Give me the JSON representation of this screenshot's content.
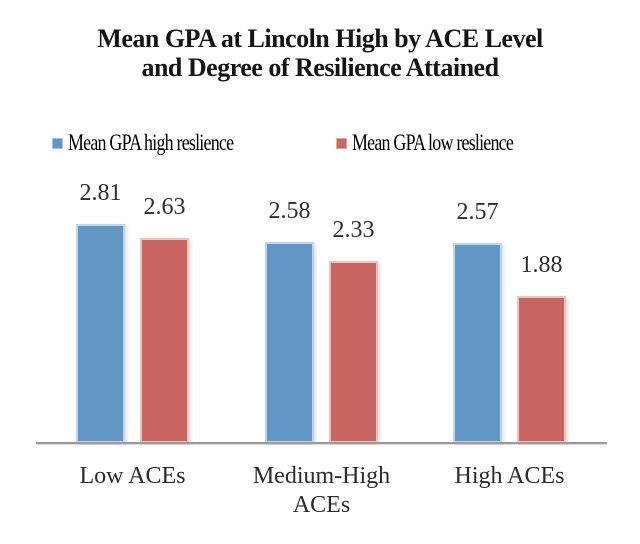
{
  "chart": {
    "title_line1": "Mean GPA at Lincoln High by ACE Level",
    "title_line2": "and Degree of Resilience Attained"
  },
  "chart_data": {
    "type": "bar",
    "title": "Mean GPA at Lincoln High by ACE Level and Degree of Resilience Attained",
    "categories": [
      "Low ACEs",
      "Medium-High ACEs",
      "High ACEs"
    ],
    "series": [
      {
        "name": "Mean GPA high reslience",
        "color": "#6296c4",
        "values": [
          2.81,
          2.58,
          2.57
        ]
      },
      {
        "name": "Mean GPA low reslience",
        "color": "#c96662",
        "values": [
          2.63,
          2.33,
          1.88
        ]
      }
    ],
    "xlabel": "",
    "ylabel": "",
    "ylim": [
      0,
      3.5
    ],
    "grid": false,
    "legend_position": "top",
    "data_label_format": "0.00",
    "colors": {
      "high_resilience": "#6296c4",
      "low_resilience": "#c96662",
      "axis_line": "#9a9a9a",
      "text": "#2e2e2e"
    }
  }
}
